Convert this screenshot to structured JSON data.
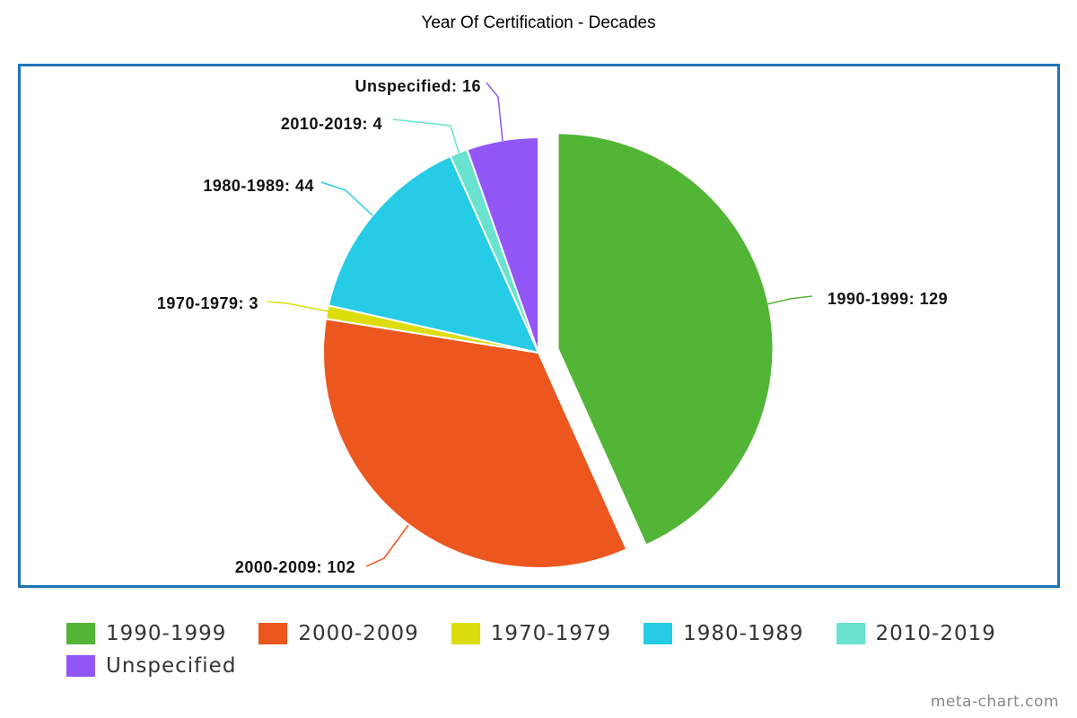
{
  "chart_data": {
    "type": "pie",
    "title": "Year Of Certification - Decades",
    "slices": [
      {
        "label": "1990-1999",
        "display": "1990-1999: 129",
        "value": 129,
        "color": "#52b535",
        "exploded": true
      },
      {
        "label": "2000-2009",
        "display": "2000-2009: 102",
        "value": 102,
        "color": "#ec561f",
        "exploded": false
      },
      {
        "label": "1970-1979",
        "display": "1970-1979: 3",
        "value": 3,
        "color": "#dddd0e",
        "exploded": false
      },
      {
        "label": "1980-1989",
        "display": "1980-1989: 44",
        "value": 44,
        "color": "#26cbe5",
        "exploded": false
      },
      {
        "label": "2010-2019",
        "display": "2010-2019: 4",
        "value": 4,
        "color": "#69e2cf",
        "exploded": false
      },
      {
        "label": "Unspecified",
        "display": "Unspecified: 16",
        "value": 16,
        "color": "#9256f6",
        "exploded": false
      }
    ],
    "legend": {
      "placement": "bottom",
      "rows": [
        [
          "1990-1999",
          "2000-2009",
          "1970-1979",
          "1980-1989",
          "2010-2019"
        ],
        [
          "Unspecified"
        ]
      ]
    },
    "frame_color": "#1f74b8"
  },
  "watermark": "meta-chart.com"
}
